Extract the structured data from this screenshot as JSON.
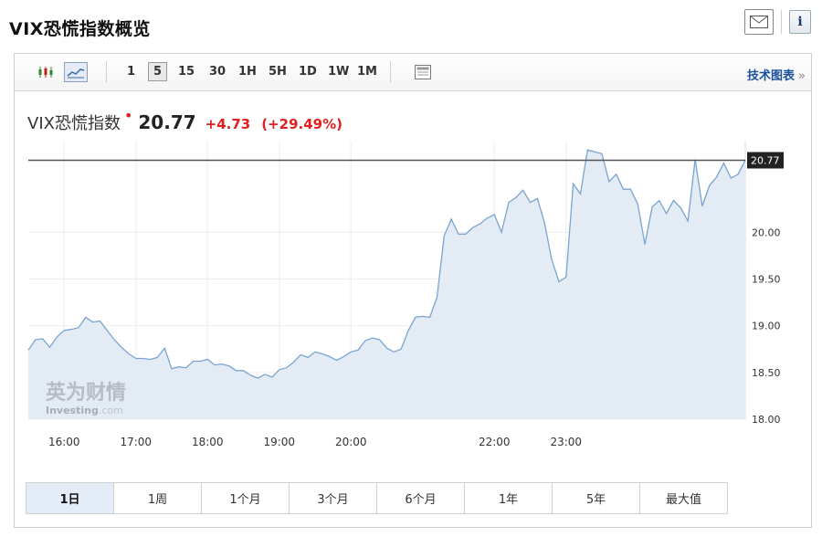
{
  "page": {
    "title": "VIX恐慌指数概览"
  },
  "toolbar": {
    "intervals": [
      "1",
      "5",
      "15",
      "30",
      "1H",
      "5H",
      "1D",
      "1W",
      "1M"
    ],
    "active_interval": "5",
    "tech_link": "技术图表",
    "tech_link_arrow": "»"
  },
  "quote": {
    "name": "VIX恐慌指数",
    "marker": "•",
    "price": "20.77",
    "change": "+4.73",
    "change_pct": "(+29.49%)",
    "color_up": "#e02020"
  },
  "watermark": {
    "cn": "英为财情",
    "en": "Investing",
    "en_suffix": ".com"
  },
  "tabs": [
    "1日",
    "1周",
    "1个月",
    "3个月",
    "6个月",
    "1年",
    "5年",
    "最大值"
  ],
  "active_tab": "1日",
  "chart_data": {
    "type": "area",
    "x_unit": "time",
    "x_ticks": [
      "16:00",
      "17:00",
      "18:00",
      "19:00",
      "20:00",
      "22:00",
      "23:00"
    ],
    "y_ticks": [
      "18.00",
      "18.50",
      "19.00",
      "19.50",
      "20.00"
    ],
    "ylim": [
      18.0,
      20.98
    ],
    "last_value": 20.77,
    "last_value_label": "20.77",
    "grid": true,
    "line_color": "#7aa4cf",
    "fill_color": "#e3ebf4",
    "points": [
      [
        "15:30",
        18.74
      ],
      [
        "15:36",
        18.85
      ],
      [
        "15:42",
        18.86
      ],
      [
        "15:48",
        18.77
      ],
      [
        "15:54",
        18.88
      ],
      [
        "16:00",
        18.95
      ],
      [
        "16:06",
        18.96
      ],
      [
        "16:12",
        18.98
      ],
      [
        "16:18",
        19.09
      ],
      [
        "16:24",
        19.04
      ],
      [
        "16:30",
        19.05
      ],
      [
        "16:36",
        18.95
      ],
      [
        "16:42",
        18.85
      ],
      [
        "16:48",
        18.77
      ],
      [
        "16:54",
        18.7
      ],
      [
        "17:00",
        18.65
      ],
      [
        "17:06",
        18.65
      ],
      [
        "17:12",
        18.64
      ],
      [
        "17:18",
        18.66
      ],
      [
        "17:24",
        18.76
      ],
      [
        "17:30",
        18.54
      ],
      [
        "17:36",
        18.56
      ],
      [
        "17:42",
        18.55
      ],
      [
        "17:48",
        18.62
      ],
      [
        "17:54",
        18.62
      ],
      [
        "18:00",
        18.64
      ],
      [
        "18:06",
        18.58
      ],
      [
        "18:12",
        18.59
      ],
      [
        "18:18",
        18.57
      ],
      [
        "18:24",
        18.52
      ],
      [
        "18:30",
        18.52
      ],
      [
        "18:36",
        18.47
      ],
      [
        "18:42",
        18.44
      ],
      [
        "18:48",
        18.48
      ],
      [
        "18:54",
        18.45
      ],
      [
        "19:00",
        18.53
      ],
      [
        "19:06",
        18.55
      ],
      [
        "19:12",
        18.61
      ],
      [
        "19:18",
        18.69
      ],
      [
        "19:24",
        18.66
      ],
      [
        "19:30",
        18.72
      ],
      [
        "19:36",
        18.7
      ],
      [
        "19:42",
        18.67
      ],
      [
        "19:48",
        18.63
      ],
      [
        "19:54",
        18.67
      ],
      [
        "20:00",
        18.72
      ],
      [
        "20:06",
        18.74
      ],
      [
        "20:12",
        18.84
      ],
      [
        "20:18",
        18.87
      ],
      [
        "20:24",
        18.85
      ],
      [
        "20:30",
        18.76
      ],
      [
        "20:36",
        18.72
      ],
      [
        "20:42",
        18.75
      ],
      [
        "20:48",
        18.95
      ],
      [
        "20:54",
        19.09
      ],
      [
        "21:00",
        19.1
      ],
      [
        "21:06",
        19.09
      ],
      [
        "21:12",
        19.3
      ],
      [
        "21:18",
        19.96
      ],
      [
        "21:24",
        20.14
      ],
      [
        "21:30",
        19.98
      ],
      [
        "21:36",
        19.98
      ],
      [
        "21:42",
        20.05
      ],
      [
        "21:48",
        20.09
      ],
      [
        "21:54",
        20.15
      ],
      [
        "22:00",
        20.19
      ],
      [
        "22:06",
        20.0
      ],
      [
        "22:12",
        20.32
      ],
      [
        "22:18",
        20.37
      ],
      [
        "22:24",
        20.45
      ],
      [
        "22:30",
        20.32
      ],
      [
        "22:36",
        20.36
      ],
      [
        "22:42",
        20.1
      ],
      [
        "22:48",
        19.71
      ],
      [
        "22:54",
        19.47
      ],
      [
        "23:00",
        19.52
      ],
      [
        "23:06",
        20.52
      ],
      [
        "23:12",
        20.41
      ],
      [
        "23:18",
        20.88
      ],
      [
        "23:24",
        20.86
      ],
      [
        "23:30",
        20.84
      ],
      [
        "23:36",
        20.54
      ],
      [
        "23:42",
        20.62
      ],
      [
        "23:48",
        20.46
      ],
      [
        "23:54",
        20.46
      ],
      [
        "24:00",
        20.3
      ],
      [
        "24:06",
        19.87
      ],
      [
        "24:12",
        20.27
      ],
      [
        "24:18",
        20.34
      ],
      [
        "24:24",
        20.2
      ],
      [
        "24:30",
        20.34
      ],
      [
        "24:36",
        20.26
      ],
      [
        "24:42",
        20.12
      ],
      [
        "24:48",
        20.78
      ],
      [
        "24:54",
        20.28
      ],
      [
        "25:00",
        20.5
      ],
      [
        "25:06",
        20.59
      ],
      [
        "25:12",
        20.74
      ],
      [
        "25:18",
        20.58
      ],
      [
        "25:24",
        20.62
      ],
      [
        "25:30",
        20.77
      ]
    ]
  }
}
